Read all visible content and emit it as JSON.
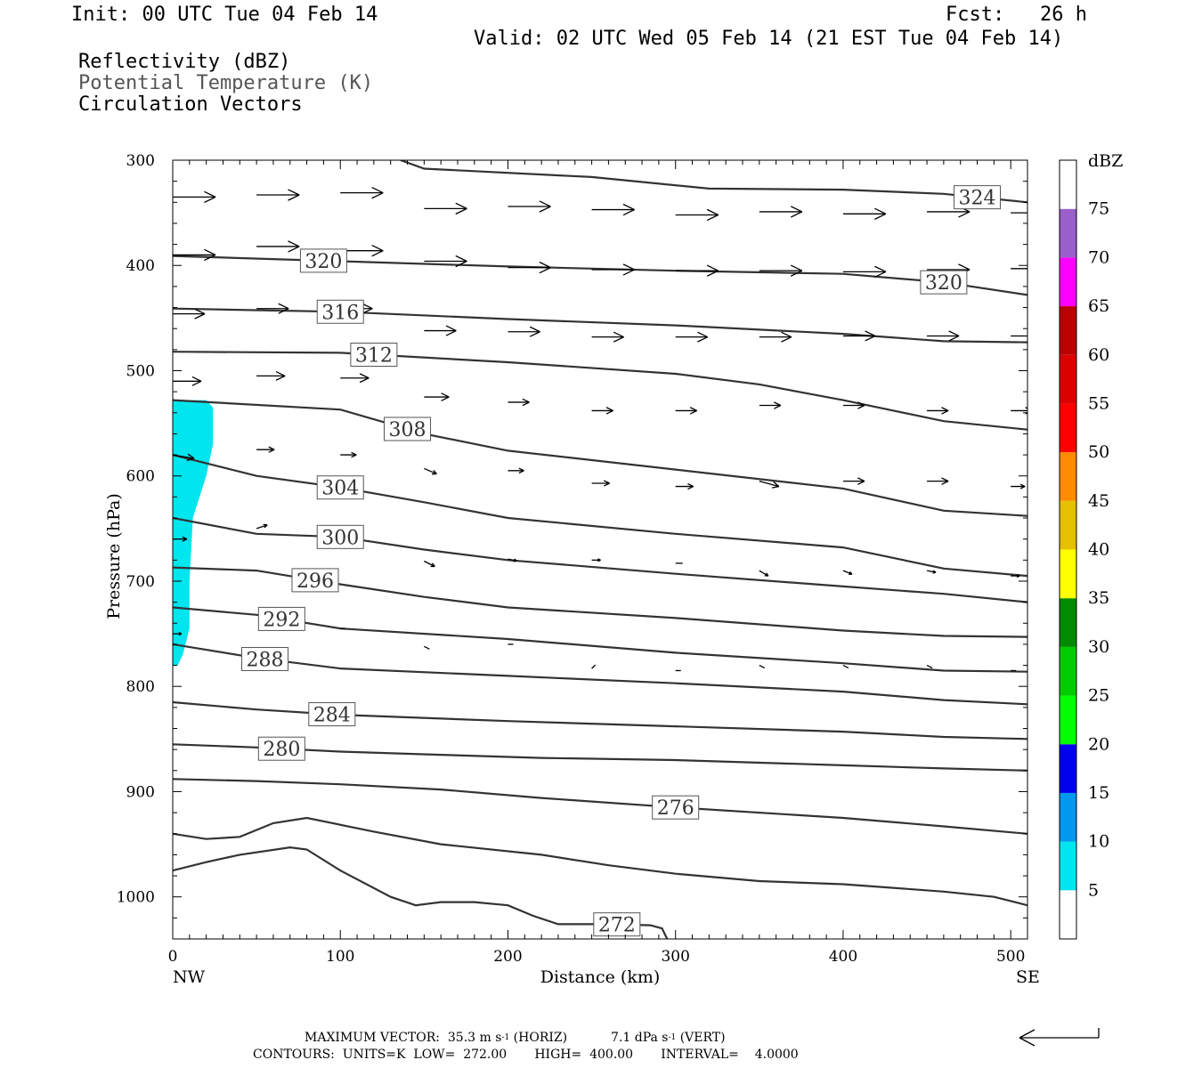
{
  "header": {
    "init": "Init: 00 UTC Tue 04 Feb 14",
    "fcst": "Fcst:   26 h",
    "valid": "Valid: 02 UTC Wed 05 Feb 14 (21 EST Tue 04 Feb 14)",
    "field1": "Reflectivity (dBZ)",
    "field2": "Potential Temperature (K)",
    "field3": "Circulation Vectors"
  },
  "footer": {
    "max_vector_label": "MAXIMUM VECTOR:",
    "horiz_value": "35.3 m s",
    "horiz_exp": "-1",
    "horiz_suffix": " (HORIZ)",
    "vert_value": "7.1 dPa s",
    "vert_exp": "-1",
    "vert_suffix": " (VERT)",
    "contours": "CONTOURS:  UNITS=K  LOW=  272.00       HIGH=  400.00       INTERVAL=    4.0000"
  },
  "chart_data": {
    "type": "cross-section",
    "xlabel": "Distance (km)",
    "ylabel": "Pressure (hPa)",
    "xlim": [
      0,
      510
    ],
    "ylim": [
      1040,
      300
    ],
    "x_ticks": [
      0,
      100,
      200,
      300,
      400,
      500
    ],
    "y_ticks": [
      300,
      400,
      500,
      600,
      700,
      800,
      900,
      1000
    ],
    "x_end_labels": {
      "left": "NW",
      "right": "SE"
    },
    "colorbar": {
      "title": "dBZ",
      "levels": [
        5,
        10,
        15,
        20,
        25,
        30,
        35,
        40,
        45,
        50,
        55,
        60,
        65,
        70,
        75
      ],
      "colors": [
        "#00e5ee",
        "#0099ee",
        "#0000ee",
        "#00ff00",
        "#00cc00",
        "#008b00",
        "#ffff00",
        "#e5c000",
        "#ff8c00",
        "#ff0000",
        "#dd0000",
        "#bb0000",
        "#ff00ff",
        "#9a5fcb",
        "#ffffff"
      ]
    },
    "reflectivity_region": {
      "level": "5-10",
      "color": "#00e5ee",
      "polygon": [
        [
          0,
          528
        ],
        [
          20,
          528
        ],
        [
          24,
          535
        ],
        [
          24,
          570
        ],
        [
          20,
          600
        ],
        [
          12,
          640
        ],
        [
          10,
          700
        ],
        [
          10,
          745
        ],
        [
          6,
          770
        ],
        [
          3,
          780
        ],
        [
          0,
          780
        ]
      ]
    },
    "isentropes": [
      {
        "theta": 324,
        "label_x": 480,
        "points": [
          [
            136,
            300
          ],
          [
            150,
            308
          ],
          [
            250,
            316
          ],
          [
            320,
            327
          ],
          [
            400,
            328
          ],
          [
            460,
            332
          ],
          [
            510,
            340
          ]
        ]
      },
      {
        "theta": 320,
        "label_x": 90,
        "points": [
          [
            0,
            391
          ],
          [
            100,
            396
          ],
          [
            200,
            401
          ],
          [
            300,
            405
          ],
          [
            400,
            408
          ],
          [
            460,
            416
          ],
          [
            510,
            428
          ]
        ]
      },
      {
        "theta": 320,
        "label_x": 460,
        "points": []
      },
      {
        "theta": 316,
        "label_x": 100,
        "points": [
          [
            0,
            441
          ],
          [
            100,
            444
          ],
          [
            200,
            451
          ],
          [
            300,
            457
          ],
          [
            400,
            465
          ],
          [
            460,
            472
          ],
          [
            510,
            473
          ]
        ]
      },
      {
        "theta": 312,
        "label_x": 120,
        "points": [
          [
            0,
            482
          ],
          [
            100,
            483
          ],
          [
            200,
            492
          ],
          [
            300,
            503
          ],
          [
            350,
            513
          ],
          [
            400,
            528
          ],
          [
            460,
            548
          ],
          [
            510,
            556
          ]
        ]
      },
      {
        "theta": 308,
        "label_x": 140,
        "points": [
          [
            0,
            528
          ],
          [
            100,
            537
          ],
          [
            150,
            560
          ],
          [
            200,
            576
          ],
          [
            300,
            594
          ],
          [
            400,
            612
          ],
          [
            460,
            633
          ],
          [
            510,
            638
          ]
        ]
      },
      {
        "theta": 304,
        "label_x": 100,
        "points": [
          [
            0,
            580
          ],
          [
            50,
            600
          ],
          [
            100,
            611
          ],
          [
            150,
            625
          ],
          [
            200,
            640
          ],
          [
            300,
            655
          ],
          [
            400,
            668
          ],
          [
            460,
            688
          ],
          [
            510,
            695
          ]
        ]
      },
      {
        "theta": 300,
        "label_x": 100,
        "points": [
          [
            0,
            640
          ],
          [
            50,
            655
          ],
          [
            100,
            658
          ],
          [
            150,
            670
          ],
          [
            200,
            680
          ],
          [
            300,
            693
          ],
          [
            400,
            705
          ],
          [
            460,
            712
          ],
          [
            510,
            720
          ]
        ]
      },
      {
        "theta": 296,
        "label_x": 85,
        "points": [
          [
            0,
            687
          ],
          [
            50,
            690
          ],
          [
            100,
            703
          ],
          [
            150,
            715
          ],
          [
            200,
            725
          ],
          [
            300,
            735
          ],
          [
            400,
            747
          ],
          [
            460,
            752
          ],
          [
            510,
            753
          ]
        ]
      },
      {
        "theta": 292,
        "label_x": 65,
        "points": [
          [
            0,
            725
          ],
          [
            50,
            732
          ],
          [
            100,
            745
          ],
          [
            200,
            755
          ],
          [
            300,
            768
          ],
          [
            400,
            778
          ],
          [
            460,
            785
          ],
          [
            510,
            786
          ]
        ]
      },
      {
        "theta": 288,
        "label_x": 55,
        "points": [
          [
            0,
            760
          ],
          [
            50,
            773
          ],
          [
            100,
            783
          ],
          [
            200,
            790
          ],
          [
            300,
            797
          ],
          [
            400,
            805
          ],
          [
            460,
            813
          ],
          [
            510,
            817
          ]
        ]
      },
      {
        "theta": 284,
        "label_x": 95,
        "points": [
          [
            0,
            815
          ],
          [
            50,
            822
          ],
          [
            100,
            827
          ],
          [
            200,
            833
          ],
          [
            300,
            838
          ],
          [
            400,
            843
          ],
          [
            460,
            848
          ],
          [
            510,
            850
          ]
        ]
      },
      {
        "theta": 280,
        "label_x": 65,
        "points": [
          [
            0,
            855
          ],
          [
            50,
            858
          ],
          [
            100,
            862
          ],
          [
            160,
            865
          ],
          [
            220,
            868
          ],
          [
            300,
            870
          ],
          [
            400,
            875
          ],
          [
            460,
            878
          ],
          [
            510,
            880
          ]
        ]
      },
      {
        "theta": 276,
        "label_x": 300,
        "points": [
          [
            0,
            888
          ],
          [
            50,
            890
          ],
          [
            100,
            893
          ],
          [
            160,
            898
          ],
          [
            220,
            906
          ],
          [
            300,
            915
          ],
          [
            400,
            925
          ],
          [
            460,
            933
          ],
          [
            510,
            940
          ]
        ]
      },
      {
        "theta": 272,
        "label_x": 265,
        "points": [
          [
            0,
            975
          ],
          [
            20,
            967
          ],
          [
            40,
            960
          ],
          [
            70,
            953
          ],
          [
            80,
            955
          ],
          [
            100,
            975
          ],
          [
            130,
            1000
          ],
          [
            145,
            1008
          ],
          [
            160,
            1005
          ],
          [
            180,
            1005
          ],
          [
            200,
            1008
          ],
          [
            215,
            1018
          ],
          [
            230,
            1026
          ],
          [
            260,
            1026
          ],
          [
            285,
            1027
          ],
          [
            292,
            1030
          ],
          [
            295,
            1040
          ]
        ]
      }
    ],
    "extra_contours": [
      {
        "points": [
          [
            0,
            940
          ],
          [
            20,
            945
          ],
          [
            40,
            943
          ],
          [
            60,
            930
          ],
          [
            80,
            925
          ],
          [
            120,
            938
          ],
          [
            160,
            950
          ],
          [
            220,
            960
          ],
          [
            260,
            970
          ],
          [
            300,
            978
          ],
          [
            350,
            985
          ],
          [
            400,
            988
          ],
          [
            460,
            995
          ],
          [
            490,
            1000
          ],
          [
            510,
            1008
          ]
        ]
      }
    ],
    "vectors_note": "circulation vectors mostly west-to-east, strong aloft, weak near surface",
    "vectors": [
      [
        0,
        335,
        48,
        0
      ],
      [
        50,
        333,
        48,
        0
      ],
      [
        100,
        331,
        48,
        0
      ],
      [
        150,
        346,
        48,
        0
      ],
      [
        200,
        344,
        48,
        0
      ],
      [
        250,
        347,
        48,
        0
      ],
      [
        300,
        352,
        48,
        0
      ],
      [
        350,
        349,
        48,
        0
      ],
      [
        400,
        351,
        48,
        0
      ],
      [
        450,
        349,
        48,
        0
      ],
      [
        500,
        350,
        48,
        0
      ],
      [
        0,
        390,
        48,
        0
      ],
      [
        50,
        382,
        48,
        0
      ],
      [
        100,
        386,
        48,
        0
      ],
      [
        150,
        396,
        48,
        0
      ],
      [
        200,
        402,
        48,
        0
      ],
      [
        250,
        404,
        48,
        0
      ],
      [
        300,
        405,
        48,
        0
      ],
      [
        350,
        405,
        48,
        0
      ],
      [
        400,
        406,
        48,
        0
      ],
      [
        450,
        404,
        48,
        0
      ],
      [
        500,
        403,
        48,
        0
      ],
      [
        0,
        446,
        36,
        0
      ],
      [
        50,
        441,
        36,
        0
      ],
      [
        100,
        441,
        36,
        0
      ],
      [
        150,
        462,
        36,
        0
      ],
      [
        200,
        463,
        36,
        0
      ],
      [
        250,
        468,
        36,
        0
      ],
      [
        300,
        468,
        36,
        0
      ],
      [
        350,
        468,
        36,
        0
      ],
      [
        400,
        467,
        36,
        0
      ],
      [
        450,
        467,
        36,
        0
      ],
      [
        500,
        467,
        36,
        0
      ],
      [
        0,
        510,
        32,
        0
      ],
      [
        50,
        505,
        32,
        0
      ],
      [
        100,
        507,
        32,
        0
      ],
      [
        150,
        525,
        28,
        0
      ],
      [
        200,
        530,
        24,
        0
      ],
      [
        250,
        538,
        24,
        0
      ],
      [
        300,
        538,
        24,
        0
      ],
      [
        350,
        533,
        24,
        0
      ],
      [
        400,
        533,
        24,
        0
      ],
      [
        450,
        538,
        24,
        0
      ],
      [
        500,
        538,
        24,
        0
      ],
      [
        0,
        580,
        24,
        4
      ],
      [
        50,
        575,
        20,
        0
      ],
      [
        100,
        580,
        18,
        0
      ],
      [
        150,
        593,
        14,
        6
      ],
      [
        200,
        595,
        18,
        0
      ],
      [
        250,
        607,
        20,
        0
      ],
      [
        300,
        610,
        20,
        0
      ],
      [
        350,
        605,
        22,
        6
      ],
      [
        400,
        605,
        24,
        0
      ],
      [
        450,
        605,
        24,
        0
      ],
      [
        500,
        610,
        16,
        0
      ],
      [
        0,
        660,
        16,
        0
      ],
      [
        50,
        650,
        12,
        -4
      ],
      [
        150,
        681,
        12,
        6
      ],
      [
        200,
        679,
        10,
        2
      ],
      [
        250,
        680,
        10,
        0
      ],
      [
        300,
        683,
        8,
        0
      ],
      [
        350,
        690,
        10,
        6
      ],
      [
        400,
        690,
        10,
        4
      ],
      [
        450,
        690,
        10,
        2
      ],
      [
        500,
        695,
        10,
        0
      ],
      [
        0,
        750,
        10,
        0
      ],
      [
        100,
        745,
        6,
        0
      ],
      [
        150,
        762,
        6,
        3
      ],
      [
        200,
        760,
        6,
        0
      ],
      [
        250,
        783,
        4,
        -4
      ],
      [
        300,
        785,
        6,
        0
      ],
      [
        350,
        780,
        6,
        3
      ],
      [
        400,
        780,
        6,
        3
      ],
      [
        450,
        780,
        6,
        3
      ],
      [
        500,
        785,
        6,
        0
      ]
    ]
  }
}
